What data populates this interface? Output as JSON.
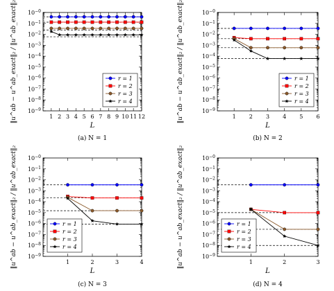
{
  "figure": {
    "colors": {
      "r1": "#0000ff",
      "r2": "#ff0000",
      "r3": "#8b5a2b",
      "r4": "#000000"
    },
    "ylabel_text": "‖u^ab − u^ab_exact‖₂ / ‖u^ab_exact‖₂",
    "y_tick_labels": [
      "10^-0",
      "10^-1",
      "10^-2",
      "10^-3",
      "10^-4",
      "10^-5",
      "10^-6",
      "10^-7",
      "10^-8",
      "10^-9"
    ]
  },
  "chart_data": [
    {
      "type": "line",
      "caption": "(a) N = 1",
      "xlabel": "L",
      "ylabel": "‖u^ab − u^ab_exact‖₂ / ‖u^ab_exact‖₂",
      "ylim": [
        1e-09,
        1
      ],
      "yscale": "log",
      "xlim": [
        0,
        12
      ],
      "xticks": [
        1,
        2,
        3,
        4,
        5,
        6,
        7,
        8,
        9,
        10,
        11,
        12
      ],
      "legend_position": "bottom-right",
      "series": [
        {
          "name": "r = 1",
          "marker": "circle",
          "x": [
            1,
            2,
            3,
            4,
            5,
            6,
            7,
            8,
            9,
            10,
            11,
            12
          ],
          "y": [
            0.4,
            0.4,
            0.4,
            0.4,
            0.4,
            0.4,
            0.4,
            0.4,
            0.4,
            0.4,
            0.4,
            0.4
          ]
        },
        {
          "name": "r = 2",
          "marker": "square",
          "x": [
            1,
            2,
            3,
            4,
            5,
            6,
            7,
            8,
            9,
            10,
            11,
            12
          ],
          "y": [
            0.13,
            0.13,
            0.13,
            0.13,
            0.13,
            0.13,
            0.13,
            0.13,
            0.13,
            0.13,
            0.13,
            0.13
          ]
        },
        {
          "name": "r = 3",
          "marker": "circle",
          "x": [
            1,
            2,
            3,
            4,
            5,
            6,
            7,
            8,
            9,
            10,
            11,
            12
          ],
          "y": [
            0.035,
            0.035,
            0.035,
            0.035,
            0.035,
            0.035,
            0.035,
            0.035,
            0.035,
            0.035,
            0.035,
            0.035
          ]
        },
        {
          "name": "r = 4",
          "marker": "star",
          "x": [
            1,
            2,
            3,
            4,
            5,
            6,
            7,
            8,
            9,
            10,
            11,
            12
          ],
          "y": [
            0.018,
            0.009,
            0.009,
            0.009,
            0.009,
            0.009,
            0.009,
            0.009,
            0.009,
            0.009,
            0.009,
            0.009
          ]
        }
      ],
      "reference_lines": [
        0.4,
        0.13,
        0.025,
        0.006
      ]
    },
    {
      "type": "line",
      "caption": "(b) N = 2",
      "xlabel": "L",
      "ylabel": "‖u^ab − u^ab_exact‖₂ / ‖u^ab_exact‖₂",
      "ylim": [
        1e-09,
        1
      ],
      "yscale": "log",
      "xlim": [
        0,
        6
      ],
      "xticks": [
        1,
        2,
        3,
        4,
        5,
        6
      ],
      "legend_position": "bottom-right",
      "series": [
        {
          "name": "r = 1",
          "marker": "circle",
          "x": [
            1,
            2,
            3,
            4,
            5,
            6
          ],
          "y": [
            0.035,
            0.035,
            0.035,
            0.035,
            0.035,
            0.035
          ]
        },
        {
          "name": "r = 2",
          "marker": "square",
          "x": [
            1,
            2,
            3,
            4,
            5,
            6
          ],
          "y": [
            0.005,
            0.004,
            0.004,
            0.004,
            0.004,
            0.004
          ]
        },
        {
          "name": "r = 3",
          "marker": "circle",
          "x": [
            1,
            2,
            3,
            4,
            5,
            6
          ],
          "y": [
            0.004,
            0.0006,
            0.0006,
            0.0006,
            0.0006,
            0.0006
          ]
        },
        {
          "name": "r = 4",
          "marker": "star",
          "x": [
            1,
            2,
            3,
            4,
            5,
            6
          ],
          "y": [
            0.003,
            0.0003,
            6e-05,
            6e-05,
            6e-05,
            6e-05
          ]
        }
      ],
      "reference_lines": [
        0.035,
        0.004,
        0.0006,
        6e-05
      ]
    },
    {
      "type": "line",
      "caption": "(c) N = 3",
      "xlabel": "L",
      "ylabel": "‖u^ab − u^ab_exact‖₂ / ‖u^ab_exact‖₂",
      "ylim": [
        1e-09,
        1
      ],
      "yscale": "log",
      "xlim": [
        0,
        4
      ],
      "xticks": [
        1,
        2,
        3,
        4
      ],
      "legend_position": "bottom-left",
      "series": [
        {
          "name": "r = 1",
          "marker": "circle",
          "x": [
            1,
            2,
            3,
            4
          ],
          "y": [
            0.0035,
            0.0035,
            0.0035,
            0.0035
          ]
        },
        {
          "name": "r = 2",
          "marker": "square",
          "x": [
            1,
            2,
            3,
            4
          ],
          "y": [
            0.0003,
            0.00022,
            0.00022,
            0.00022
          ]
        },
        {
          "name": "r = 3",
          "marker": "circle",
          "x": [
            1,
            2,
            3,
            4
          ],
          "y": [
            0.00025,
            1.5e-05,
            1.5e-05,
            1.5e-05
          ]
        },
        {
          "name": "r = 4",
          "marker": "star",
          "x": [
            1,
            2,
            3,
            4
          ],
          "y": [
            0.0002,
            1.8e-06,
            9e-07,
            9e-07
          ]
        }
      ],
      "reference_lines": [
        0.0035,
        0.00022,
        1.5e-05,
        9e-07
      ]
    },
    {
      "type": "line",
      "caption": "(d) N = 4",
      "xlabel": "L",
      "ylabel": "‖u^ab − u^ab_exact‖₂ / ‖u^ab_exact‖₂",
      "ylim": [
        1e-09,
        1
      ],
      "yscale": "log",
      "xlim": [
        0,
        3
      ],
      "xticks": [
        1,
        2,
        3
      ],
      "legend_position": "bottom-left",
      "series": [
        {
          "name": "r = 1",
          "marker": "circle",
          "x": [
            1,
            2,
            3
          ],
          "y": [
            0.0035,
            0.0035,
            0.0035
          ]
        },
        {
          "name": "r = 2",
          "marker": "square",
          "x": [
            1,
            2,
            3
          ],
          "y": [
            2e-05,
            1e-05,
            1e-05
          ]
        },
        {
          "name": "r = 3",
          "marker": "circle",
          "x": [
            1,
            2,
            3
          ],
          "y": [
            2e-05,
            3e-07,
            3e-07
          ]
        },
        {
          "name": "r = 4",
          "marker": "star",
          "x": [
            1,
            2,
            3
          ],
          "y": [
            2e-05,
            7e-08,
            1e-08
          ]
        }
      ],
      "reference_lines": [
        0.0035,
        1e-05,
        3e-07,
        1e-08
      ]
    }
  ]
}
